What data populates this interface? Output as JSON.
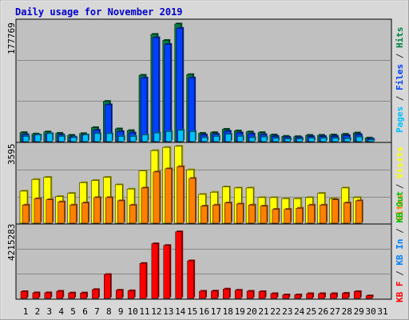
{
  "chart_data": [
    {
      "type": "bar",
      "title": "Daily usage for November 2019",
      "categories": [
        "1",
        "2",
        "3",
        "4",
        "5",
        "6",
        "7",
        "8",
        "9",
        "10",
        "11",
        "12",
        "13",
        "14",
        "15",
        "16",
        "17",
        "18",
        "19",
        "20",
        "21",
        "22",
        "23",
        "24",
        "25",
        "26",
        "27",
        "28",
        "29",
        "30",
        "31"
      ],
      "weekend_days": [
        "2",
        "3",
        "9",
        "10",
        "16",
        "17",
        "23",
        "24",
        "30",
        "31"
      ],
      "y_max_label": "177769",
      "ylim": [
        0,
        177769
      ],
      "legend": [
        "Pages",
        "Files",
        "Hits"
      ],
      "series": [
        {
          "name": "Hits",
          "color": "#008040",
          "values": [
            13500,
            11500,
            14500,
            12500,
            9500,
            12000,
            21000,
            60000,
            19000,
            16500,
            99000,
            160000,
            151000,
            175500,
            100000,
            12500,
            13500,
            18500,
            16000,
            14500,
            13500,
            10000,
            8000,
            7500,
            9500,
            9500,
            10000,
            11000,
            13000,
            5500,
            0
          ]
        },
        {
          "name": "Files",
          "color": "#0040ff",
          "values": [
            10500,
            9000,
            11500,
            10000,
            7000,
            9500,
            17000,
            55000,
            15000,
            13000,
            95000,
            155000,
            145000,
            169000,
            95000,
            10000,
            11000,
            15500,
            13000,
            11500,
            10500,
            8000,
            6500,
            6000,
            7500,
            7500,
            8000,
            9000,
            10500,
            4000,
            0
          ]
        },
        {
          "name": "Pages",
          "color": "#00c0ff",
          "values": [
            8000,
            10000,
            12000,
            8000,
            6000,
            10000,
            12000,
            12000,
            8000,
            8000,
            10000,
            13000,
            15000,
            17000,
            15000,
            6000,
            8000,
            11000,
            8000,
            6000,
            7000,
            5000,
            4000,
            4000,
            5000,
            5000,
            5000,
            4500,
            7000,
            2500,
            0
          ]
        }
      ]
    },
    {
      "type": "bar",
      "y_max_label": "3595",
      "ylim": [
        0,
        3595
      ],
      "legend": [
        "Visits",
        "Sites"
      ],
      "series": [
        {
          "name": "Visits",
          "color": "#ffff00",
          "values": [
            1500,
            2050,
            2150,
            1250,
            1400,
            1900,
            2000,
            2150,
            1800,
            1600,
            2450,
            3400,
            3550,
            3600,
            2500,
            1350,
            1450,
            1700,
            1650,
            1650,
            1200,
            1200,
            1150,
            1150,
            1200,
            1400,
            1150,
            1650,
            1200,
            0,
            0
          ]
        },
        {
          "name": "Sites",
          "color": "#ff8000",
          "values": [
            850,
            1150,
            1100,
            1000,
            850,
            950,
            1200,
            1200,
            1050,
            850,
            1650,
            2400,
            2550,
            2650,
            2100,
            800,
            850,
            950,
            900,
            850,
            800,
            650,
            650,
            700,
            850,
            850,
            1100,
            950,
            1050,
            0,
            0
          ]
        }
      ]
    },
    {
      "type": "bar",
      "y_max_label": "4215283",
      "ylim": [
        0,
        4215283
      ],
      "legend": [
        "KB F",
        "KB In",
        "KB Out"
      ],
      "series": [
        {
          "name": "KB F",
          "color": "#ff0000",
          "values": [
            400000,
            330000,
            330000,
            420000,
            320000,
            320000,
            520000,
            1400000,
            480000,
            450000,
            2050000,
            3200000,
            3100000,
            3900000,
            2200000,
            420000,
            430000,
            550000,
            480000,
            420000,
            400000,
            280000,
            210000,
            210000,
            280000,
            280000,
            280000,
            300000,
            400000,
            150000,
            0
          ]
        }
      ]
    }
  ]
}
